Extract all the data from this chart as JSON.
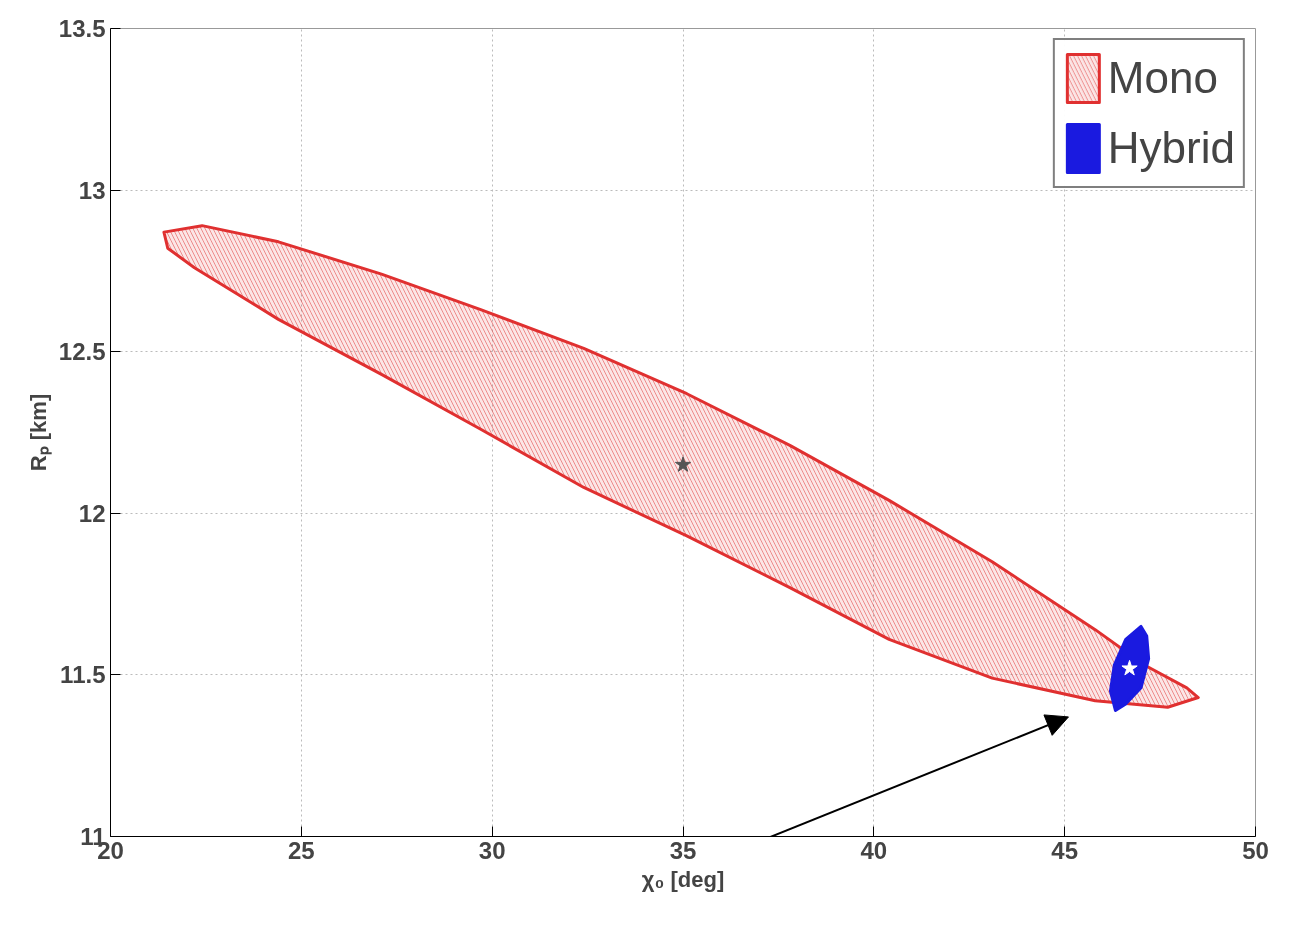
{
  "chart_data": {
    "type": "area",
    "xlabel": "χ₀ [deg]",
    "ylabel": "Rₚ [km]",
    "xlim": [
      20,
      50
    ],
    "ylim": [
      11,
      13.5
    ],
    "xticks": [
      20,
      25,
      30,
      35,
      40,
      45,
      50
    ],
    "yticks": [
      11,
      11.5,
      12,
      12.5,
      13,
      13.5
    ],
    "grid": true,
    "legend": "top right",
    "series": [
      {
        "name": "Mono",
        "color": "#e03030",
        "x": [
          21.4,
          22.4,
          24.4,
          27.1,
          29.7,
          32.4,
          35.1,
          37.8,
          40.4,
          43.1,
          45.8,
          47.1,
          48.2,
          48.5,
          47.7,
          45.8,
          43.1,
          40.4,
          37.8,
          35.1,
          32.4,
          29.7,
          27.1,
          24.4,
          22.2,
          21.5
        ],
        "values": [
          12.87,
          12.89,
          12.84,
          12.74,
          12.63,
          12.51,
          12.37,
          12.21,
          12.04,
          11.85,
          11.64,
          11.53,
          11.46,
          11.43,
          11.4,
          11.42,
          11.49,
          11.61,
          11.77,
          11.93,
          12.08,
          12.26,
          12.43,
          12.6,
          12.76,
          12.82
        ]
      },
      {
        "name": "Hybrid",
        "color": "#1a1ae0",
        "x": [
          47.0,
          47.15,
          47.2,
          47.0,
          46.6,
          46.33,
          46.2,
          46.3,
          46.6
        ],
        "values": [
          11.65,
          11.62,
          11.55,
          11.46,
          11.41,
          11.39,
          11.45,
          11.53,
          11.61
        ]
      },
      {
        "type": "scatter",
        "marker": "star",
        "color": "#555555",
        "x": [
          35.0
        ],
        "values": [
          12.15
        ]
      },
      {
        "type": "scatter",
        "marker": "star",
        "color": "#ffffff",
        "x": [
          46.7
        ],
        "values": [
          11.52
        ]
      }
    ]
  }
}
